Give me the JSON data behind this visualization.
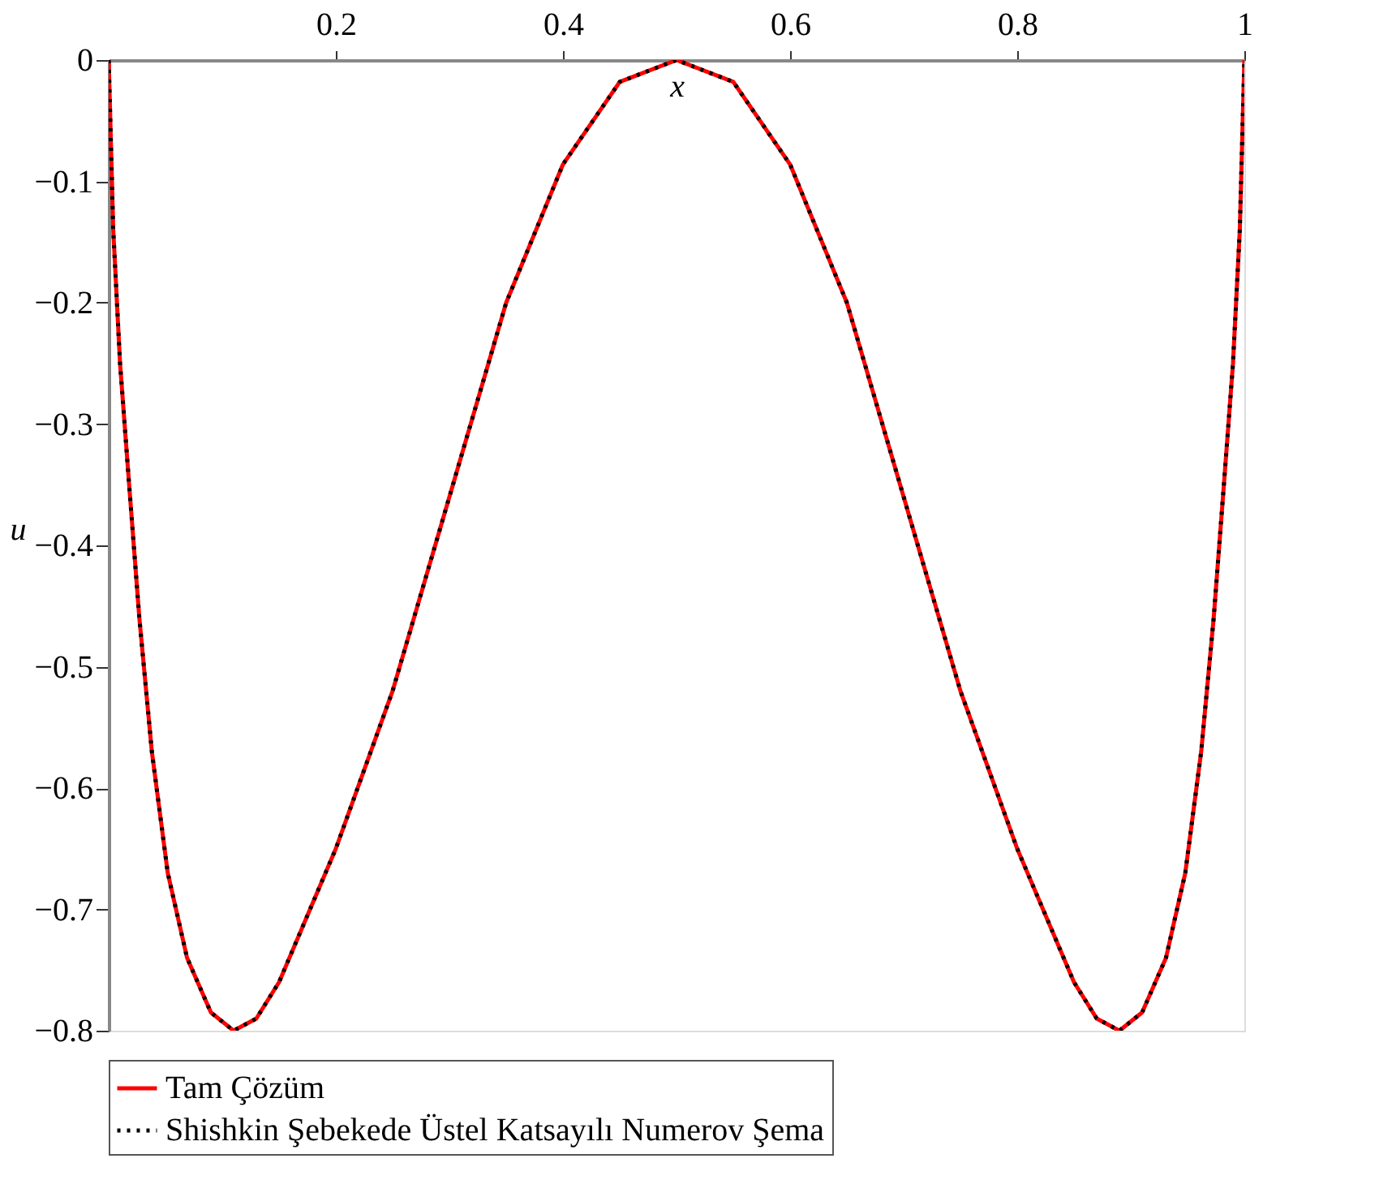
{
  "chart_data": {
    "type": "line",
    "xlabel": "x",
    "ylabel": "u",
    "x": [
      0,
      0.004,
      0.01,
      0.018,
      0.027,
      0.038,
      0.052,
      0.069,
      0.09,
      0.11,
      0.13,
      0.15,
      0.2,
      0.25,
      0.3,
      0.35,
      0.4,
      0.45,
      0.5,
      0.55,
      0.6,
      0.65,
      0.7,
      0.75,
      0.8,
      0.85,
      0.87,
      0.89,
      0.91,
      0.931,
      0.948,
      0.962,
      0.973,
      0.982,
      0.99,
      0.996,
      1
    ],
    "series": [
      {
        "name": "Tam Çözüm",
        "color": "#ff0000",
        "line_style": "solid",
        "values": [
          0,
          -0.14,
          -0.25,
          -0.35,
          -0.46,
          -0.57,
          -0.67,
          -0.74,
          -0.785,
          -0.8,
          -0.79,
          -0.76,
          -0.65,
          -0.52,
          -0.36,
          -0.2,
          -0.086,
          -0.018,
          0,
          -0.018,
          -0.086,
          -0.2,
          -0.36,
          -0.52,
          -0.65,
          -0.76,
          -0.79,
          -0.8,
          -0.785,
          -0.74,
          -0.67,
          -0.57,
          -0.46,
          -0.35,
          -0.25,
          -0.14,
          0
        ]
      },
      {
        "name": "Shishkin Şebekede Üstel Katsayılı Numerov Şema",
        "color": "#000000",
        "line_style": "dotted",
        "values": [
          0,
          -0.14,
          -0.25,
          -0.35,
          -0.46,
          -0.57,
          -0.67,
          -0.74,
          -0.785,
          -0.8,
          -0.79,
          -0.76,
          -0.65,
          -0.52,
          -0.36,
          -0.2,
          -0.086,
          -0.018,
          0,
          -0.018,
          -0.086,
          -0.2,
          -0.36,
          -0.52,
          -0.65,
          -0.76,
          -0.79,
          -0.8,
          -0.785,
          -0.74,
          -0.67,
          -0.57,
          -0.46,
          -0.35,
          -0.25,
          -0.14,
          0
        ]
      }
    ],
    "xlim": [
      0,
      1
    ],
    "ylim": [
      -0.8,
      0
    ],
    "xticks": [
      0.2,
      0.4,
      0.6,
      0.8,
      1
    ],
    "yticks": [
      0,
      {
        "value": -0.1,
        "label": "−0.1"
      },
      {
        "value": -0.2,
        "label": "−0.2"
      },
      {
        "value": -0.3,
        "label": "−0.3"
      },
      {
        "value": -0.4,
        "label": "−0.4"
      },
      {
        "value": -0.5,
        "label": "−0.5"
      },
      {
        "value": -0.6,
        "label": "−0.6"
      },
      {
        "value": -0.7,
        "label": "−0.7"
      },
      {
        "value": -0.8,
        "label": "−0.8"
      }
    ],
    "grid": false,
    "legend": "bottom"
  }
}
